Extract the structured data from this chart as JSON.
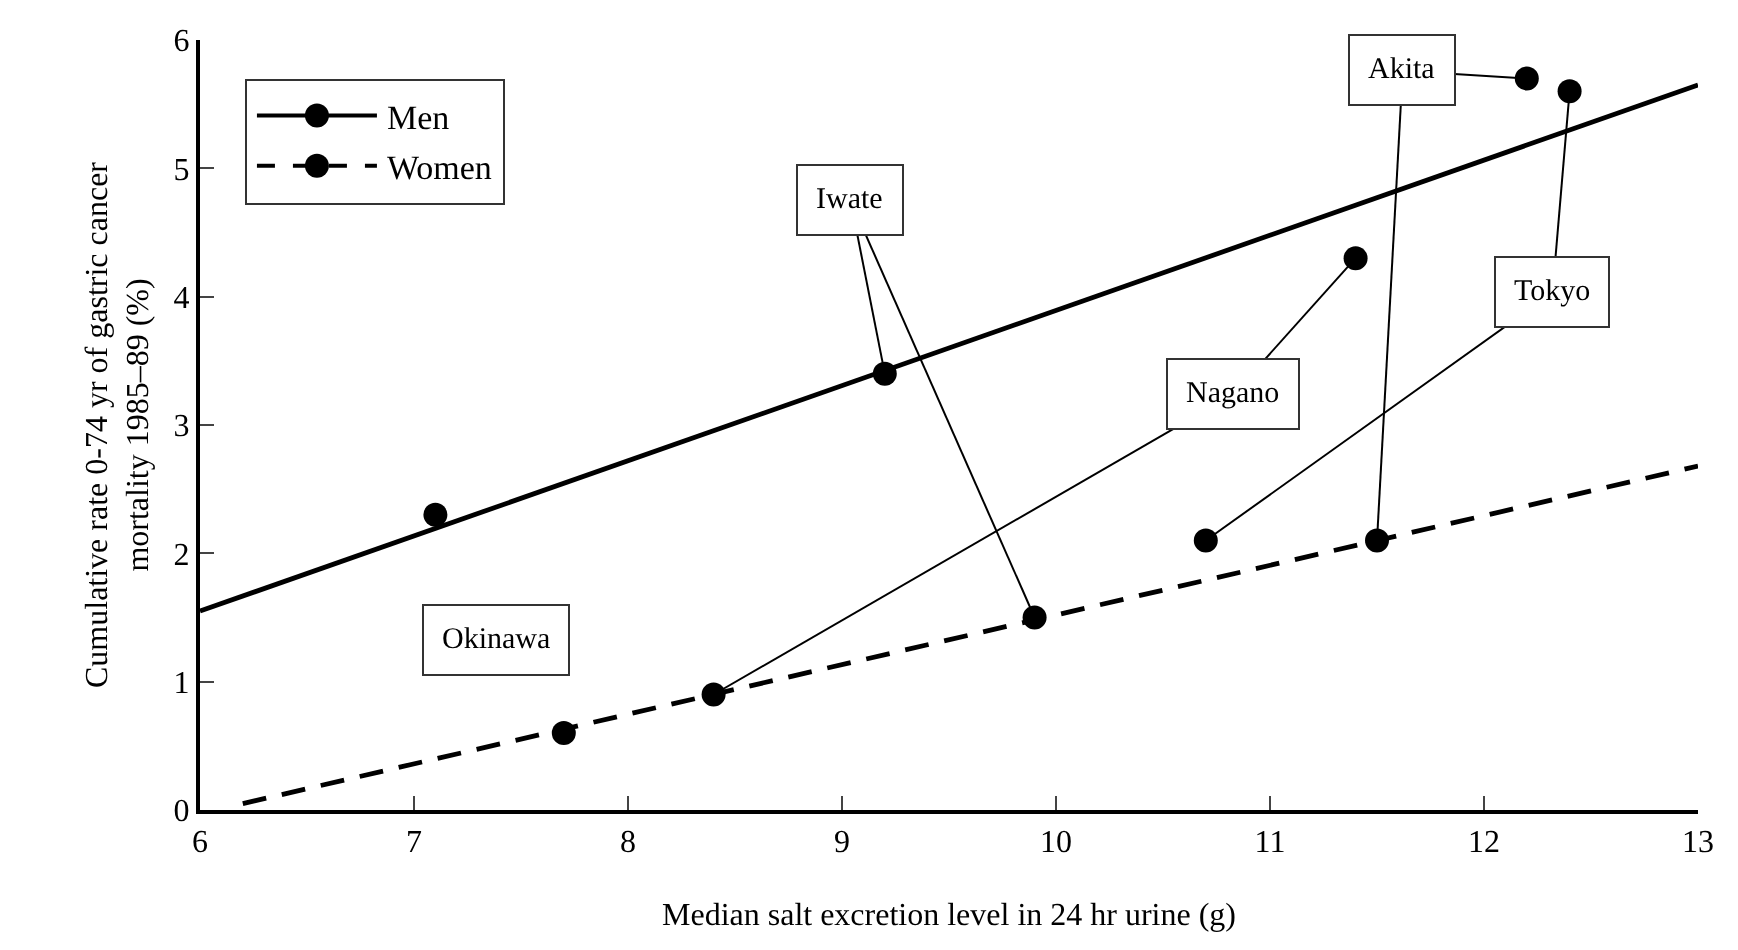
{
  "chart_data": {
    "type": "scatter",
    "xlabel": "Median salt excretion level in 24 hr urine (g)",
    "ylabel": "Cumulative rate 0-74 yr of gastric cancer\nmortality 1985–89 (%)",
    "xlim": [
      6,
      13
    ],
    "xticks": [
      6,
      7,
      8,
      9,
      10,
      11,
      12,
      13
    ],
    "ylim": [
      0,
      6
    ],
    "yticks": [
      0,
      1,
      2,
      3,
      4,
      5,
      6
    ],
    "grid": false,
    "legend": "top left",
    "series": [
      {
        "name": "Men",
        "marker": "circle",
        "color": "#000000",
        "line_style": "solid",
        "x": [
          7.1,
          9.2,
          11.4,
          12.4,
          12.2
        ],
        "values": [
          2.3,
          3.4,
          4.3,
          5.6,
          5.7
        ]
      },
      {
        "name": "Women",
        "marker": "circle",
        "color": "#000000",
        "line_style": "dashed",
        "x": [
          7.7,
          9.9,
          8.4,
          10.7,
          11.5
        ],
        "values": [
          0.6,
          1.5,
          0.9,
          2.1,
          2.1
        ]
      },
      {
        "type": "line",
        "color": "#000000",
        "line_style": "solid",
        "x": [
          6,
          13
        ],
        "values": [
          1.55,
          5.65
        ]
      },
      {
        "type": "line",
        "color": "#000000",
        "line_style": "dashed",
        "x": [
          6.2,
          13
        ],
        "values": [
          0.05,
          2.68
        ]
      }
    ],
    "annotations": [
      "Okinawa",
      {
        "text": "Iwate",
        "x": 9.2,
        "y": 3.4
      },
      {
        "text": "Nagano",
        "x": 11.4,
        "y": 4.3
      },
      {
        "text": "Tokyo",
        "x": 12.4,
        "y": 5.6
      },
      {
        "text": "Akita",
        "x": 12.2,
        "y": 5.7
      }
    ]
  }
}
